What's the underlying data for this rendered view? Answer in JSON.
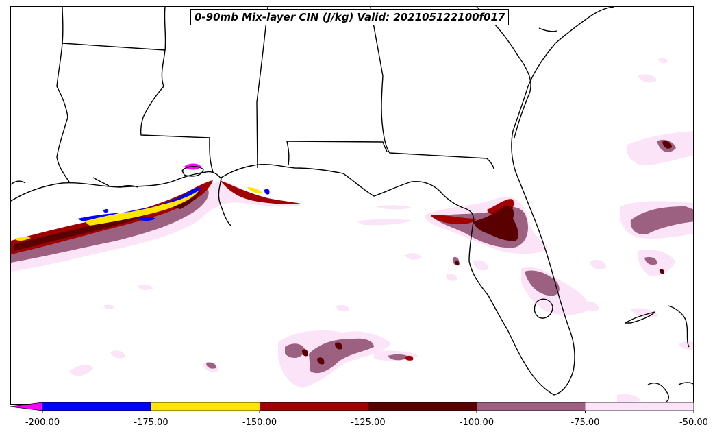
{
  "map": {
    "title": "0-90mb Mix-layer CIN (J/kg) Valid: 202105122100f017",
    "region": "Gulf of Mexico and southeastern United States",
    "colorbar": {
      "bins": [
        {
          "from": -200,
          "to": -175,
          "color": "#0000ff"
        },
        {
          "from": -175,
          "to": -150,
          "color": "#ffe600"
        },
        {
          "from": -150,
          "to": -125,
          "color": "#a00000"
        },
        {
          "from": -125,
          "to": -100,
          "color": "#5a0000"
        },
        {
          "from": -100,
          "to": -75,
          "color": "#9c6080"
        },
        {
          "from": -75,
          "to": -50,
          "color": "#fce4f8"
        }
      ],
      "under_color": "#ff00ff",
      "ticks": [
        "-200.00",
        "-175.00",
        "-150.00",
        "-125.00",
        "-100.00",
        "-75.00",
        "-50.00"
      ]
    }
  }
}
